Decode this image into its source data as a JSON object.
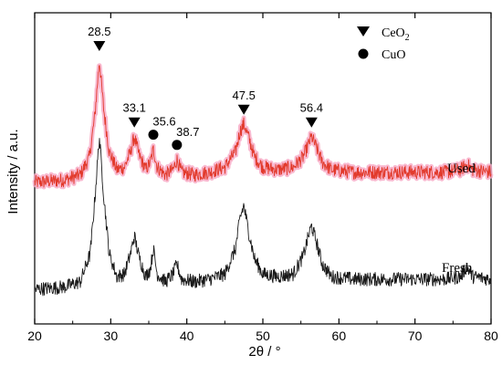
{
  "chart_data": {
    "type": "line",
    "title": "",
    "xlabel": "2θ / °",
    "ylabel": "Intensity / a.u.",
    "xlim": [
      20,
      80
    ],
    "x_ticks": [
      "20",
      "30",
      "40",
      "50",
      "60",
      "70",
      "80"
    ],
    "grid": false,
    "series": [
      {
        "name": "Used",
        "color": "#e23a2c",
        "halo_color": "#f7a8c4",
        "baseline": 0.52,
        "points": [
          [
            20,
            0.52
          ],
          [
            24,
            0.53
          ],
          [
            26,
            0.55
          ],
          [
            27.2,
            0.62
          ],
          [
            27.9,
            0.78
          ],
          [
            28.5,
            1.0
          ],
          [
            29.1,
            0.8
          ],
          [
            29.8,
            0.64
          ],
          [
            30.8,
            0.57
          ],
          [
            31.8,
            0.58
          ],
          [
            32.6,
            0.64
          ],
          [
            33.1,
            0.7
          ],
          [
            33.7,
            0.63
          ],
          [
            34.6,
            0.57
          ],
          [
            35.2,
            0.6
          ],
          [
            35.6,
            0.65
          ],
          [
            36.1,
            0.58
          ],
          [
            37.2,
            0.55
          ],
          [
            38.2,
            0.57
          ],
          [
            38.7,
            0.61
          ],
          [
            39.3,
            0.56
          ],
          [
            41,
            0.55
          ],
          [
            43,
            0.56
          ],
          [
            45,
            0.58
          ],
          [
            46.4,
            0.64
          ],
          [
            47.0,
            0.72
          ],
          [
            47.5,
            0.75
          ],
          [
            48.1,
            0.7
          ],
          [
            48.9,
            0.62
          ],
          [
            50,
            0.58
          ],
          [
            52,
            0.57
          ],
          [
            54,
            0.58
          ],
          [
            55.3,
            0.62
          ],
          [
            56.0,
            0.67
          ],
          [
            56.4,
            0.7
          ],
          [
            57.0,
            0.66
          ],
          [
            57.8,
            0.6
          ],
          [
            59,
            0.57
          ],
          [
            62,
            0.56
          ],
          [
            66,
            0.56
          ],
          [
            70,
            0.56
          ],
          [
            74,
            0.56
          ],
          [
            76,
            0.57
          ],
          [
            76.8,
            0.59
          ],
          [
            77.6,
            0.57
          ],
          [
            80,
            0.56
          ]
        ]
      },
      {
        "name": "Fresh",
        "color": "#1a1a1a",
        "baseline": 0.1,
        "points": [
          [
            20,
            0.1
          ],
          [
            24,
            0.11
          ],
          [
            26,
            0.13
          ],
          [
            27.3,
            0.24
          ],
          [
            27.9,
            0.45
          ],
          [
            28.5,
            0.7
          ],
          [
            29.1,
            0.46
          ],
          [
            29.8,
            0.24
          ],
          [
            30.8,
            0.15
          ],
          [
            31.8,
            0.16
          ],
          [
            32.6,
            0.24
          ],
          [
            33.1,
            0.31
          ],
          [
            33.7,
            0.23
          ],
          [
            34.6,
            0.15
          ],
          [
            35.2,
            0.18
          ],
          [
            35.6,
            0.26
          ],
          [
            36.1,
            0.16
          ],
          [
            37.2,
            0.13
          ],
          [
            38.2,
            0.16
          ],
          [
            38.7,
            0.2
          ],
          [
            39.3,
            0.14
          ],
          [
            41,
            0.13
          ],
          [
            43,
            0.14
          ],
          [
            45,
            0.16
          ],
          [
            46.4,
            0.26
          ],
          [
            47.0,
            0.38
          ],
          [
            47.5,
            0.43
          ],
          [
            48.1,
            0.33
          ],
          [
            48.9,
            0.22
          ],
          [
            50,
            0.16
          ],
          [
            52,
            0.15
          ],
          [
            54,
            0.16
          ],
          [
            55.3,
            0.23
          ],
          [
            56.0,
            0.31
          ],
          [
            56.4,
            0.35
          ],
          [
            57.0,
            0.29
          ],
          [
            57.8,
            0.2
          ],
          [
            59,
            0.15
          ],
          [
            62,
            0.14
          ],
          [
            66,
            0.14
          ],
          [
            70,
            0.14
          ],
          [
            74,
            0.14
          ],
          [
            76,
            0.15
          ],
          [
            76.8,
            0.19
          ],
          [
            77.6,
            0.15
          ],
          [
            80,
            0.14
          ]
        ]
      }
    ],
    "peak_labels": [
      {
        "x": 28.5,
        "label": "28.5",
        "marker": "triangle"
      },
      {
        "x": 33.1,
        "label": "33.1",
        "marker": "triangle"
      },
      {
        "x": 35.6,
        "label": "35.6",
        "marker": "circle"
      },
      {
        "x": 38.7,
        "label": "38.7",
        "marker": "circle"
      },
      {
        "x": 47.5,
        "label": "47.5",
        "marker": "triangle"
      },
      {
        "x": 56.4,
        "label": "56.4",
        "marker": "triangle"
      }
    ],
    "legend": {
      "placement": "top-right",
      "entries": [
        {
          "marker": "triangle",
          "label": "CeO",
          "subscript": "2"
        },
        {
          "marker": "circle",
          "label": "CuO",
          "subscript": ""
        }
      ]
    }
  }
}
